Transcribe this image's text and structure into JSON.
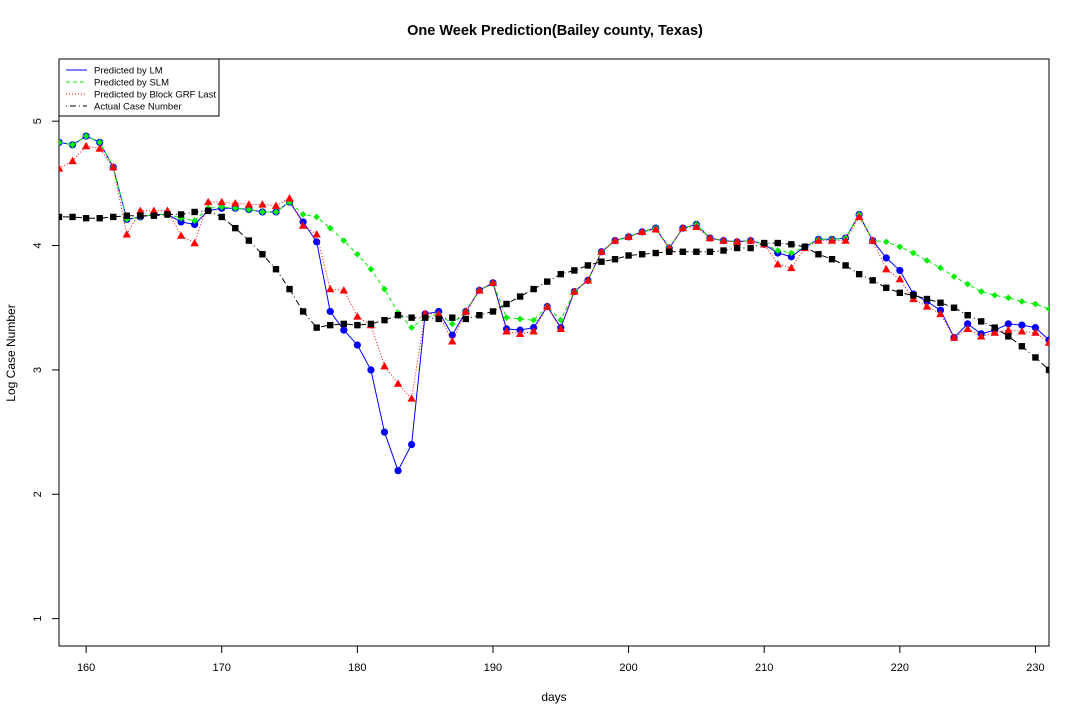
{
  "chart_data": {
    "type": "line",
    "title": "One Week Prediction(Bailey county, Texas)",
    "xlabel": "days",
    "ylabel": "Log Case Number",
    "xlim": [
      158,
      231
    ],
    "ylim": [
      0.78,
      5.5
    ],
    "xticks": [
      160,
      170,
      180,
      190,
      200,
      210,
      220,
      230
    ],
    "yticks": [
      1,
      2,
      3,
      4,
      5
    ],
    "grid": false,
    "legend_position": "top-left",
    "x": [
      158,
      159,
      160,
      161,
      162,
      163,
      164,
      165,
      166,
      167,
      168,
      169,
      170,
      171,
      172,
      173,
      174,
      175,
      176,
      177,
      178,
      179,
      180,
      181,
      182,
      183,
      184,
      185,
      186,
      187,
      188,
      189,
      190,
      191,
      192,
      193,
      194,
      195,
      196,
      197,
      198,
      199,
      200,
      201,
      202,
      203,
      204,
      205,
      206,
      207,
      208,
      209,
      210,
      211,
      212,
      213,
      214,
      215,
      216,
      217,
      218,
      219,
      220,
      221,
      222,
      223,
      224,
      225,
      226,
      227,
      228,
      229,
      230,
      231
    ],
    "series": [
      {
        "name": "Predicted by LM",
        "color": "#0000ff",
        "line": "solid",
        "marker": "circle",
        "values": [
          4.83,
          4.81,
          4.88,
          4.83,
          4.63,
          4.21,
          4.23,
          4.25,
          4.25,
          4.19,
          4.17,
          4.28,
          4.3,
          4.3,
          4.29,
          4.27,
          4.27,
          4.35,
          4.19,
          4.03,
          3.47,
          3.32,
          3.2,
          3.0,
          2.5,
          2.19,
          2.4,
          3.45,
          3.47,
          3.28,
          3.47,
          3.64,
          3.7,
          3.33,
          3.32,
          3.34,
          3.51,
          3.34,
          3.63,
          3.72,
          3.95,
          4.04,
          4.07,
          4.11,
          4.14,
          3.98,
          4.14,
          4.17,
          4.06,
          4.04,
          4.03,
          4.04,
          4.01,
          3.94,
          3.91,
          3.99,
          4.05,
          4.05,
          4.06,
          4.25,
          4.04,
          3.9,
          3.8,
          3.61,
          3.55,
          3.48,
          3.26,
          3.37,
          3.29,
          3.32,
          3.37,
          3.36,
          3.34,
          3.24
        ]
      },
      {
        "name": "Predicted by SLM",
        "color": "#00ee00",
        "line": "dashed",
        "marker": "diamond",
        "values": [
          4.83,
          4.81,
          4.88,
          4.83,
          4.63,
          4.21,
          4.23,
          4.25,
          4.25,
          4.22,
          4.2,
          4.3,
          4.31,
          4.3,
          4.29,
          4.27,
          4.27,
          4.35,
          4.25,
          4.23,
          4.14,
          4.04,
          3.93,
          3.81,
          3.65,
          3.46,
          3.34,
          3.42,
          3.45,
          3.37,
          3.47,
          3.64,
          3.7,
          3.42,
          3.41,
          3.4,
          3.51,
          3.4,
          3.63,
          3.72,
          3.95,
          4.04,
          4.07,
          4.11,
          4.14,
          3.98,
          4.14,
          4.17,
          4.06,
          4.04,
          4.03,
          4.04,
          4.01,
          3.96,
          3.94,
          3.99,
          4.05,
          4.05,
          4.06,
          4.25,
          4.04,
          4.03,
          3.99,
          3.94,
          3.88,
          3.82,
          3.75,
          3.69,
          3.63,
          3.6,
          3.58,
          3.55,
          3.53,
          3.49
        ]
      },
      {
        "name": "Predicted by Block GRF Last",
        "color": "#ff0000",
        "line": "dotted",
        "marker": "triangle",
        "values": [
          4.62,
          4.68,
          4.8,
          4.78,
          4.63,
          4.09,
          4.28,
          4.28,
          4.28,
          4.08,
          4.02,
          4.35,
          4.35,
          4.34,
          4.33,
          4.33,
          4.32,
          4.38,
          4.16,
          4.09,
          3.65,
          3.64,
          3.43,
          3.36,
          3.03,
          2.89,
          2.77,
          3.45,
          3.45,
          3.23,
          3.47,
          3.64,
          3.7,
          3.31,
          3.29,
          3.31,
          3.51,
          3.33,
          3.63,
          3.72,
          3.95,
          4.04,
          4.07,
          4.11,
          4.13,
          3.98,
          4.14,
          4.15,
          4.06,
          4.04,
          4.03,
          4.04,
          4.01,
          3.85,
          3.82,
          3.98,
          4.04,
          4.04,
          4.04,
          4.23,
          4.04,
          3.81,
          3.73,
          3.57,
          3.51,
          3.45,
          3.26,
          3.33,
          3.27,
          3.3,
          3.32,
          3.31,
          3.3,
          3.22
        ]
      },
      {
        "name": "Actual Case Number",
        "color": "#000000",
        "line": "dotdash",
        "marker": "square",
        "values": [
          4.23,
          4.23,
          4.22,
          4.22,
          4.23,
          4.24,
          4.24,
          4.24,
          4.25,
          4.25,
          4.27,
          4.28,
          4.23,
          4.14,
          4.04,
          3.93,
          3.81,
          3.65,
          3.47,
          3.34,
          3.36,
          3.37,
          3.36,
          3.37,
          3.4,
          3.44,
          3.42,
          3.42,
          3.41,
          3.42,
          3.41,
          3.44,
          3.47,
          3.53,
          3.59,
          3.65,
          3.71,
          3.77,
          3.8,
          3.84,
          3.87,
          3.89,
          3.92,
          3.93,
          3.94,
          3.95,
          3.95,
          3.95,
          3.95,
          3.96,
          3.98,
          3.98,
          4.02,
          4.02,
          4.01,
          3.99,
          3.93,
          3.89,
          3.84,
          3.77,
          3.72,
          3.66,
          3.62,
          3.6,
          3.57,
          3.54,
          3.5,
          3.44,
          3.39,
          3.34,
          3.27,
          3.19,
          3.1,
          3.0
        ]
      }
    ]
  }
}
